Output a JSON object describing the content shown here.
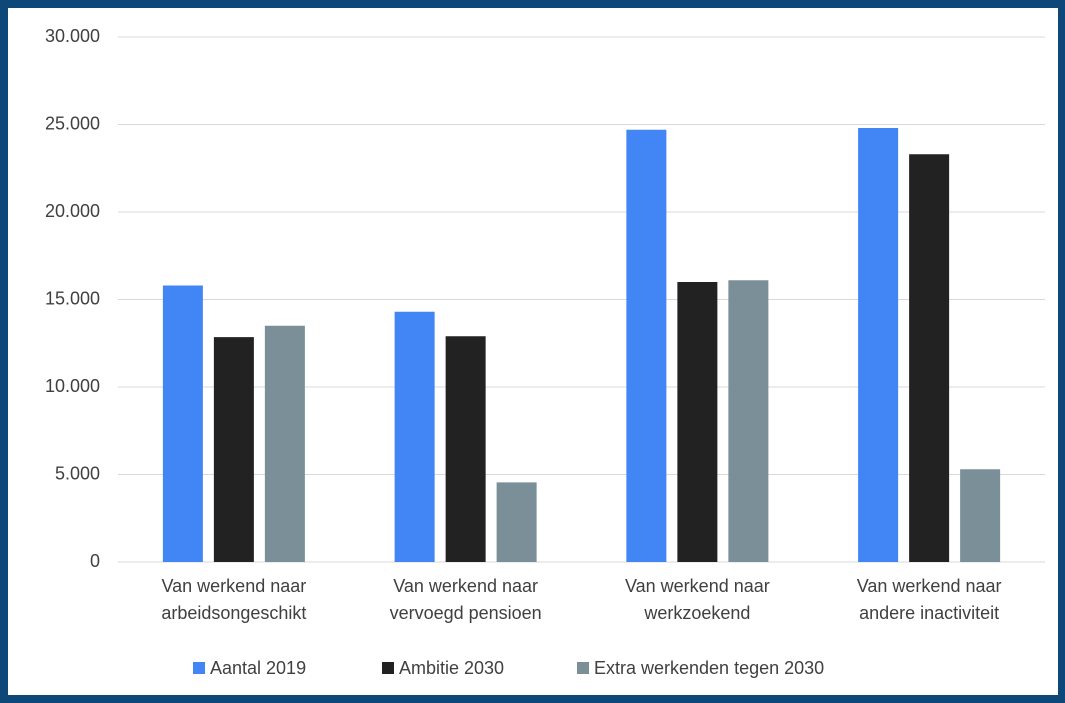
{
  "chart_data": {
    "type": "bar",
    "categories": [
      [
        "Van werkend naar",
        "arbeidsongeschikt"
      ],
      [
        "Van werkend naar",
        "vervoegd pensioen"
      ],
      [
        "Van werkend naar",
        "werkzoekend"
      ],
      [
        "Van werkend naar",
        "andere inactiviteit"
      ]
    ],
    "series": [
      {
        "name": "Aantal 2019",
        "color": "#4285f4",
        "values": [
          15800,
          14300,
          24700,
          24800
        ]
      },
      {
        "name": "Ambitie 2030",
        "color": "#222222",
        "values": [
          12850,
          12900,
          16000,
          23300
        ]
      },
      {
        "name": "Extra werkenden tegen 2030",
        "color": "#7b8f99",
        "values": [
          13500,
          4550,
          16100,
          5300
        ]
      }
    ],
    "ylim": [
      0,
      30000
    ],
    "yticks": [
      0,
      {
        "value": 5000,
        "label": "5.000"
      },
      {
        "value": 10000,
        "label": "10.000"
      },
      {
        "value": 15000,
        "label": "15.000"
      },
      {
        "value": 20000,
        "label": "20.000"
      },
      {
        "value": 25000,
        "label": "25.000"
      },
      {
        "value": 30000,
        "label": "30.000"
      }
    ],
    "grid": true,
    "legend": "bottom"
  }
}
